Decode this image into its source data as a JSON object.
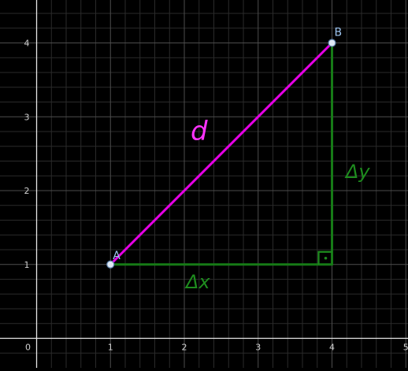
{
  "canvas": {
    "background": "#000000",
    "minor_grid_color": "#2a2a2a",
    "major_grid_color": "#4d4d4d",
    "axis_color": "#e6e6e6",
    "tick_label_color": "#d0d0d0"
  },
  "axes": {
    "x_range": [
      -0.1,
      5.0
    ],
    "y_range": [
      -0.35,
      4.6
    ],
    "x_ticks": [
      "0",
      "1",
      "2",
      "3",
      "4",
      "5"
    ],
    "y_ticks": [
      "1",
      "2",
      "3",
      "4"
    ]
  },
  "points": [
    {
      "label": "A",
      "x": 1,
      "y": 1,
      "color": "#9ec5f0"
    },
    {
      "label": "B",
      "x": 4,
      "y": 4,
      "color": "#9ec5f0"
    }
  ],
  "segments": [
    {
      "name": "hypotenuse-d",
      "from": [
        1,
        1
      ],
      "to": [
        4,
        4
      ],
      "color": "#e600e6"
    },
    {
      "name": "leg-dx",
      "from": [
        1,
        1
      ],
      "to": [
        4,
        1
      ],
      "color": "#167a16"
    },
    {
      "name": "leg-dy",
      "from": [
        4,
        1
      ],
      "to": [
        4,
        4
      ],
      "color": "#167a16"
    }
  ],
  "annotations": {
    "d_label": {
      "text": "d",
      "color": "#ff33ff"
    },
    "dx_label": {
      "text": "Δx",
      "color": "#1e8c1e"
    },
    "dy_label": {
      "text": "Δy",
      "color": "#1e8c1e"
    }
  },
  "right_angle_marker": {
    "color": "#1e8c1e"
  }
}
